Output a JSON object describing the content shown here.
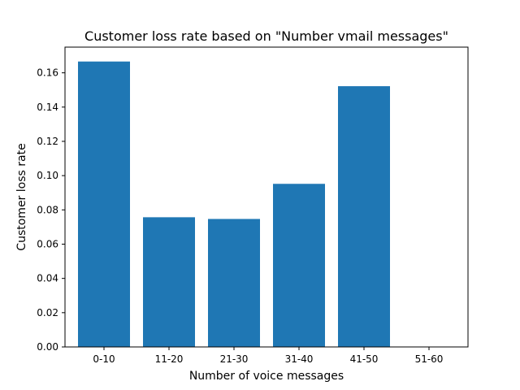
{
  "chart_data": {
    "type": "bar",
    "title": "Customer loss rate based on \"Number vmail messages\"",
    "xlabel": "Number of voice messages",
    "ylabel": "Customer loss rate",
    "categories": [
      "0-10",
      "11-20",
      "21-30",
      "31-40",
      "41-50",
      "51-60"
    ],
    "values": [
      0.1666,
      0.0757,
      0.0747,
      0.0952,
      0.1522,
      0.0
    ],
    "ylim": [
      0,
      0.175
    ],
    "yticks": [
      0.0,
      0.02,
      0.04,
      0.06,
      0.08,
      0.1,
      0.12,
      0.14,
      0.16
    ],
    "ytick_labels": [
      "0.00",
      "0.02",
      "0.04",
      "0.06",
      "0.08",
      "0.10",
      "0.12",
      "0.14",
      "0.16"
    ],
    "bar_color": "#1f77b4",
    "grid": false,
    "legend": "none"
  }
}
